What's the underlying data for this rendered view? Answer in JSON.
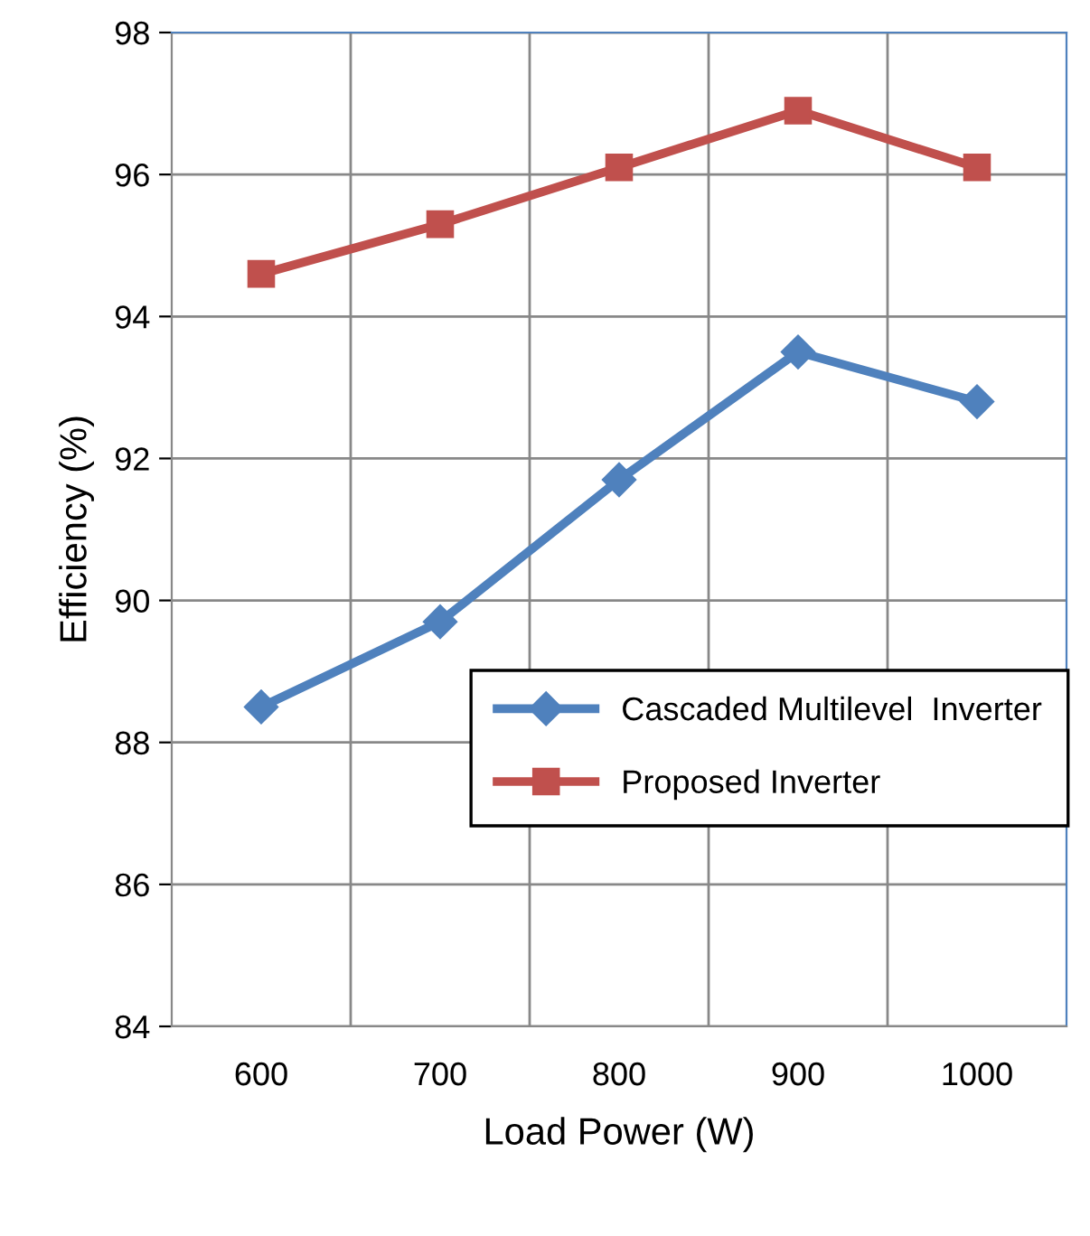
{
  "chart_data": {
    "type": "line",
    "xlabel": "Load Power (W)",
    "ylabel": "Efficiency (%)",
    "categories": [
      "600",
      "700",
      "800",
      "900",
      "1000"
    ],
    "series": [
      {
        "name": "Cascaded Multilevel  Inverter",
        "color": "#4f81bd",
        "marker": "diamond",
        "values": [
          88.5,
          89.7,
          91.7,
          93.5,
          92.8
        ]
      },
      {
        "name": "Proposed Inverter",
        "color": "#c0504d",
        "marker": "square",
        "values": [
          94.6,
          95.3,
          96.1,
          96.9,
          96.1
        ]
      }
    ],
    "ylim": [
      84,
      98
    ],
    "yticks": [
      84,
      86,
      88,
      90,
      92,
      94,
      96,
      98
    ],
    "grid": true,
    "legend": "right",
    "line_style": "solid"
  }
}
